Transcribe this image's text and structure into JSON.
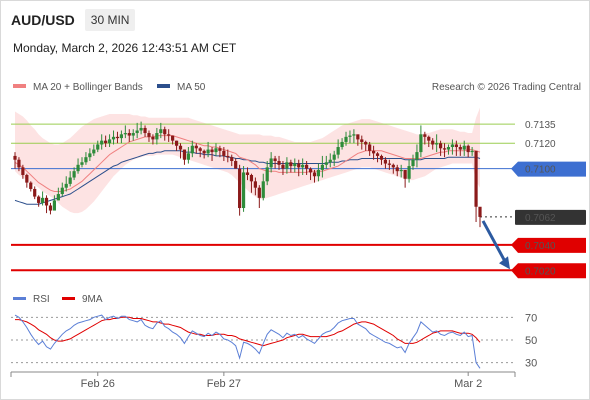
{
  "header": {
    "symbol": "AUD/USD",
    "timeframe": "30 MIN",
    "datetime": "Monday, March 2, 2026 12:43:51 AM CET"
  },
  "chart_data": {
    "type": "candlestick",
    "price_panel": {
      "legend": [
        {
          "label": "MA 20 + Bollinger Bands",
          "color": "#f08080"
        },
        {
          "label": "MA 50",
          "color": "#2c4f8c"
        }
      ],
      "credit": "Research © 2026 Trading Central",
      "ylim": [
        0.701,
        0.7154
      ],
      "levels": [
        {
          "value": 0.7135,
          "label": "0.7135",
          "role": "target",
          "color": "#9acd50"
        },
        {
          "value": 0.712,
          "label": "0.7120",
          "role": "target",
          "color": "#9acd50"
        },
        {
          "value": 0.71,
          "label": "0.7100",
          "role": "pivot",
          "color": "#3d6fd1"
        },
        {
          "value": 0.7062,
          "label": "0.7062",
          "role": "last",
          "color": "#333333"
        },
        {
          "value": 0.704,
          "label": "0.7040",
          "role": "support",
          "color": "#e00000"
        },
        {
          "value": 0.702,
          "label": "0.7020",
          "role": "support",
          "color": "#e00000"
        }
      ],
      "forecast_arrow": {
        "from": 0.7062,
        "to": 0.702,
        "color": "#2c5aa0"
      },
      "closes": [
        0.7107,
        0.7101,
        0.7095,
        0.7089,
        0.7084,
        0.7078,
        0.7073,
        0.7077,
        0.7071,
        0.7067,
        0.7075,
        0.708,
        0.7085,
        0.7088,
        0.7093,
        0.7098,
        0.7103,
        0.7105,
        0.7109,
        0.7112,
        0.7115,
        0.7119,
        0.7122,
        0.712,
        0.7123,
        0.7125,
        0.7124,
        0.7127,
        0.7128,
        0.7126,
        0.7128,
        0.713,
        0.7132,
        0.7128,
        0.7125,
        0.7123,
        0.7128,
        0.7131,
        0.7127,
        0.7126,
        0.7122,
        0.7118,
        0.7115,
        0.7107,
        0.7112,
        0.7118,
        0.7116,
        0.7114,
        0.7112,
        0.7115,
        0.7113,
        0.7116,
        0.7114,
        0.711,
        0.7109,
        0.7106,
        0.71,
        0.7069,
        0.7097,
        0.7095,
        0.709,
        0.7085,
        0.7077,
        0.709,
        0.7101,
        0.7108,
        0.7106,
        0.7103,
        0.71,
        0.7105,
        0.7102,
        0.7104,
        0.7101,
        0.7103,
        0.71,
        0.7097,
        0.7094,
        0.7099,
        0.7103,
        0.7105,
        0.7107,
        0.7111,
        0.7117,
        0.7121,
        0.7125,
        0.7126,
        0.7127,
        0.7123,
        0.7121,
        0.7119,
        0.7114,
        0.7112,
        0.711,
        0.7107,
        0.7104,
        0.7103,
        0.7101,
        0.7098,
        0.7099,
        0.7092,
        0.7102,
        0.7107,
        0.7113,
        0.7127,
        0.7125,
        0.7122,
        0.7119,
        0.712,
        0.7116,
        0.7115,
        0.7117,
        0.7119,
        0.7117,
        0.7115,
        0.7118,
        0.7113,
        0.7114,
        0.707,
        0.7062
      ],
      "highs": [
        0.7113,
        0.7109,
        0.7103,
        0.7096,
        0.709,
        0.7086,
        0.7079,
        0.7082,
        0.7079,
        0.7073,
        0.7079,
        0.7085,
        0.7089,
        0.7094,
        0.7098,
        0.7101,
        0.7108,
        0.7109,
        0.7113,
        0.7116,
        0.7119,
        0.7122,
        0.7127,
        0.7126,
        0.7127,
        0.713,
        0.7129,
        0.713,
        0.7134,
        0.7131,
        0.7131,
        0.7136,
        0.7137,
        0.7134,
        0.713,
        0.7127,
        0.7132,
        0.7136,
        0.7133,
        0.7131,
        0.7126,
        0.7122,
        0.712,
        0.7115,
        0.7117,
        0.7122,
        0.712,
        0.7117,
        0.7115,
        0.7121,
        0.7117,
        0.712,
        0.7118,
        0.7117,
        0.7115,
        0.7111,
        0.7108,
        0.7103,
        0.7102,
        0.7101,
        0.7096,
        0.7093,
        0.7087,
        0.7096,
        0.7106,
        0.7113,
        0.711,
        0.711,
        0.7106,
        0.7109,
        0.7107,
        0.7108,
        0.7107,
        0.7108,
        0.7106,
        0.7101,
        0.7099,
        0.7104,
        0.711,
        0.711,
        0.7112,
        0.7114,
        0.7123,
        0.7124,
        0.7129,
        0.713,
        0.7131,
        0.7126,
        0.7126,
        0.7122,
        0.7121,
        0.7118,
        0.7113,
        0.7111,
        0.7109,
        0.7107,
        0.7104,
        0.7103,
        0.7103,
        0.7098,
        0.7107,
        0.7111,
        0.7119,
        0.7134,
        0.7129,
        0.7126,
        0.7124,
        0.7127,
        0.7122,
        0.712,
        0.7119,
        0.7123,
        0.7122,
        0.7119,
        0.7122,
        0.7119,
        0.7117,
        0.7085,
        0.7067
      ],
      "lows": [
        0.71,
        0.7098,
        0.7092,
        0.7085,
        0.7082,
        0.7076,
        0.707,
        0.7071,
        0.7065,
        0.7064,
        0.7068,
        0.7075,
        0.7078,
        0.7082,
        0.7086,
        0.7091,
        0.7096,
        0.7101,
        0.7103,
        0.7106,
        0.711,
        0.7113,
        0.7115,
        0.7117,
        0.7117,
        0.7119,
        0.712,
        0.712,
        0.7124,
        0.7121,
        0.7122,
        0.7124,
        0.7127,
        0.7125,
        0.7121,
        0.7119,
        0.7119,
        0.7124,
        0.7122,
        0.7121,
        0.7119,
        0.7114,
        0.7108,
        0.7103,
        0.7104,
        0.7109,
        0.7112,
        0.7109,
        0.7108,
        0.7109,
        0.7106,
        0.711,
        0.7109,
        0.7106,
        0.7105,
        0.7102,
        0.71,
        0.7063,
        0.7066,
        0.7091,
        0.7081,
        0.7079,
        0.7069,
        0.7075,
        0.7087,
        0.7097,
        0.71,
        0.7099,
        0.7095,
        0.7096,
        0.7097,
        0.7097,
        0.7094,
        0.7095,
        0.7095,
        0.7091,
        0.7089,
        0.709,
        0.7093,
        0.71,
        0.7101,
        0.7102,
        0.7108,
        0.7115,
        0.7118,
        0.712,
        0.712,
        0.7118,
        0.7115,
        0.7114,
        0.711,
        0.7107,
        0.7105,
        0.7103,
        0.71,
        0.7099,
        0.7096,
        0.7094,
        0.7093,
        0.7085,
        0.7089,
        0.7099,
        0.7101,
        0.7109,
        0.7119,
        0.7117,
        0.7115,
        0.7113,
        0.711,
        0.7109,
        0.7111,
        0.7111,
        0.711,
        0.711,
        0.711,
        0.7109,
        0.711,
        0.7058,
        0.7054
      ],
      "ma20": [
        0.7105,
        0.7103,
        0.7101,
        0.7098,
        0.7095,
        0.7092,
        0.7089,
        0.7087,
        0.7085,
        0.7083,
        0.7082,
        0.7082,
        0.7082,
        0.7083,
        0.7084,
        0.7086,
        0.7088,
        0.709,
        0.7093,
        0.7096,
        0.7099,
        0.7102,
        0.7105,
        0.7108,
        0.7111,
        0.7113,
        0.7115,
        0.7117,
        0.7119,
        0.7121,
        0.7122,
        0.7123,
        0.7124,
        0.7125,
        0.7125,
        0.7125,
        0.7126,
        0.7126,
        0.7126,
        0.7126,
        0.7126,
        0.7125,
        0.7124,
        0.7123,
        0.7122,
        0.7121,
        0.712,
        0.7119,
        0.7118,
        0.7118,
        0.7117,
        0.7117,
        0.7116,
        0.7115,
        0.7114,
        0.7113,
        0.7112,
        0.7109,
        0.7108,
        0.7107,
        0.7105,
        0.7103,
        0.71,
        0.7099,
        0.7098,
        0.7098,
        0.7098,
        0.7097,
        0.7097,
        0.7097,
        0.7097,
        0.7097,
        0.7097,
        0.7097,
        0.7097,
        0.7098,
        0.7098,
        0.7098,
        0.7098,
        0.7099,
        0.71,
        0.7101,
        0.7102,
        0.7104,
        0.7106,
        0.7108,
        0.711,
        0.7112,
        0.7113,
        0.7114,
        0.7114,
        0.7114,
        0.7114,
        0.7114,
        0.7113,
        0.7112,
        0.7111,
        0.711,
        0.7109,
        0.7108,
        0.7108,
        0.7108,
        0.7108,
        0.7108,
        0.7109,
        0.711,
        0.7111,
        0.7112,
        0.7113,
        0.7113,
        0.7114,
        0.7114,
        0.7114,
        0.7114,
        0.7114,
        0.7115,
        0.7115,
        0.7114,
        0.7113
      ],
      "ma50": [
        0.7075,
        0.7074,
        0.7073,
        0.7072,
        0.7072,
        0.7072,
        0.7072,
        0.7073,
        0.7074,
        0.7075,
        0.7076,
        0.7077,
        0.7078,
        0.7079,
        0.708,
        0.7082,
        0.7084,
        0.7086,
        0.7088,
        0.709,
        0.7092,
        0.7094,
        0.7096,
        0.7098,
        0.71,
        0.7102,
        0.7103,
        0.7105,
        0.7106,
        0.7107,
        0.7108,
        0.7109,
        0.711,
        0.7111,
        0.7112,
        0.7112,
        0.7113,
        0.7113,
        0.7114,
        0.7114,
        0.7114,
        0.7114,
        0.7114,
        0.7113,
        0.7113,
        0.7113,
        0.7112,
        0.7112,
        0.7111,
        0.7111,
        0.7111,
        0.711,
        0.711,
        0.711,
        0.7109,
        0.7109,
        0.7108,
        0.7108,
        0.7107,
        0.7107,
        0.7106,
        0.7106,
        0.7105,
        0.7105,
        0.7104,
        0.7104,
        0.7104,
        0.7104,
        0.7104,
        0.7104,
        0.7104,
        0.7104,
        0.7104,
        0.7104,
        0.7104,
        0.7104,
        0.7104,
        0.7104,
        0.7104,
        0.7104,
        0.7105,
        0.7105,
        0.7105,
        0.7106,
        0.7106,
        0.7107,
        0.7107,
        0.7107,
        0.7108,
        0.7108,
        0.7108,
        0.7108,
        0.7108,
        0.7108,
        0.7108,
        0.7108,
        0.7108,
        0.7108,
        0.7108,
        0.7107,
        0.7107,
        0.7107,
        0.7107,
        0.7107,
        0.7108,
        0.7108,
        0.7108,
        0.7108,
        0.7108,
        0.7108,
        0.7109,
        0.7109,
        0.7109,
        0.7109,
        0.7109,
        0.7109,
        0.7109,
        0.7109,
        0.7108
      ],
      "bb_upper": [
        0.7145,
        0.7143,
        0.7141,
        0.7138,
        0.7134,
        0.7131,
        0.7127,
        0.7124,
        0.7122,
        0.712,
        0.7119,
        0.7119,
        0.712,
        0.7122,
        0.7124,
        0.7127,
        0.713,
        0.7133,
        0.7135,
        0.7137,
        0.7139,
        0.714,
        0.7141,
        0.7142,
        0.7143,
        0.7143,
        0.7143,
        0.7143,
        0.7143,
        0.7143,
        0.7142,
        0.7142,
        0.7141,
        0.7141,
        0.714,
        0.714,
        0.714,
        0.714,
        0.714,
        0.714,
        0.714,
        0.714,
        0.714,
        0.714,
        0.714,
        0.7139,
        0.7138,
        0.7137,
        0.7136,
        0.7135,
        0.7134,
        0.7133,
        0.7132,
        0.7131,
        0.713,
        0.7129,
        0.7128,
        0.7127,
        0.7127,
        0.7127,
        0.7127,
        0.7127,
        0.7127,
        0.7126,
        0.7126,
        0.7126,
        0.7125,
        0.7125,
        0.7124,
        0.7123,
        0.7122,
        0.7121,
        0.7121,
        0.7121,
        0.7121,
        0.7121,
        0.7122,
        0.7123,
        0.7124,
        0.7126,
        0.7128,
        0.713,
        0.7132,
        0.7134,
        0.7135,
        0.7136,
        0.7137,
        0.7138,
        0.7139,
        0.7139,
        0.7139,
        0.7138,
        0.7137,
        0.7136,
        0.7135,
        0.7134,
        0.7133,
        0.7132,
        0.7131,
        0.713,
        0.7129,
        0.7128,
        0.7127,
        0.7127,
        0.7128,
        0.7128,
        0.7129,
        0.713,
        0.7131,
        0.7131,
        0.7131,
        0.7131,
        0.713,
        0.7129,
        0.7129,
        0.7128,
        0.7128,
        0.714,
        0.7148
      ],
      "bb_lower": [
        0.7098,
        0.7095,
        0.7093,
        0.7091,
        0.7089,
        0.7087,
        0.7085,
        0.7082,
        0.708,
        0.7078,
        0.7076,
        0.7073,
        0.707,
        0.7068,
        0.7066,
        0.7065,
        0.7065,
        0.7066,
        0.7068,
        0.7071,
        0.7074,
        0.7078,
        0.7082,
        0.7086,
        0.709,
        0.7094,
        0.7097,
        0.71,
        0.7103,
        0.7105,
        0.7107,
        0.7108,
        0.7109,
        0.711,
        0.711,
        0.711,
        0.7111,
        0.7111,
        0.7111,
        0.7111,
        0.7111,
        0.711,
        0.7109,
        0.7108,
        0.7107,
        0.7106,
        0.7105,
        0.7104,
        0.7103,
        0.7102,
        0.7101,
        0.71,
        0.7099,
        0.7098,
        0.7097,
        0.7095,
        0.7092,
        0.7089,
        0.7086,
        0.7083,
        0.708,
        0.7078,
        0.7076,
        0.7076,
        0.7077,
        0.7078,
        0.7079,
        0.708,
        0.7081,
        0.7082,
        0.7083,
        0.7084,
        0.7085,
        0.7086,
        0.7087,
        0.7088,
        0.7089,
        0.709,
        0.7091,
        0.7092,
        0.7093,
        0.7094,
        0.7095,
        0.7096,
        0.7097,
        0.7098,
        0.7099,
        0.71,
        0.7101,
        0.7101,
        0.7101,
        0.71,
        0.7099,
        0.7098,
        0.7097,
        0.7096,
        0.7095,
        0.7094,
        0.7093,
        0.7092,
        0.7091,
        0.7091,
        0.7092,
        0.7093,
        0.7094,
        0.7096,
        0.7098,
        0.71,
        0.7101,
        0.7102,
        0.7103,
        0.7104,
        0.7104,
        0.7104,
        0.7104,
        0.7104,
        0.7104,
        0.709,
        0.7085
      ]
    },
    "rsi_panel": {
      "legend": [
        {
          "label": "RSI",
          "color": "#5b7fd6"
        },
        {
          "label": "9MA",
          "color": "#e00000"
        }
      ],
      "ylim": [
        20,
        80
      ],
      "ticks": [
        70,
        50,
        30
      ],
      "rsi": [
        72,
        70,
        66,
        61,
        55,
        50,
        46,
        49,
        44,
        42,
        47,
        51,
        55,
        58,
        60,
        63,
        65,
        66,
        67,
        68,
        70,
        71,
        72,
        68,
        70,
        71,
        69,
        71,
        71,
        68,
        67,
        66,
        68,
        63,
        61,
        60,
        65,
        67,
        62,
        60,
        57,
        55,
        52,
        47,
        53,
        58,
        56,
        54,
        53,
        56,
        54,
        57,
        55,
        51,
        50,
        48,
        45,
        34,
        48,
        47,
        45,
        42,
        38,
        47,
        55,
        59,
        57,
        55,
        52,
        56,
        54,
        55,
        52,
        54,
        51,
        49,
        47,
        51,
        55,
        57,
        58,
        61,
        65,
        67,
        68,
        69,
        69,
        64,
        62,
        60,
        56,
        54,
        52,
        50,
        48,
        47,
        45,
        43,
        44,
        39,
        47,
        52,
        57,
        66,
        63,
        60,
        57,
        58,
        55,
        54,
        56,
        57,
        55,
        54,
        57,
        53,
        54,
        30,
        25
      ],
      "ma9": [
        68,
        68,
        67,
        66,
        64,
        62,
        59,
        57,
        55,
        52,
        50,
        49,
        49,
        50,
        51,
        53,
        55,
        57,
        59,
        61,
        63,
        65,
        67,
        68,
        68,
        69,
        69,
        70,
        70,
        70,
        69,
        69,
        69,
        68,
        67,
        66,
        66,
        65,
        64,
        64,
        63,
        62,
        61,
        59,
        57,
        56,
        55,
        55,
        54,
        54,
        54,
        55,
        55,
        55,
        54,
        54,
        53,
        51,
        50,
        49,
        48,
        47,
        46,
        45,
        46,
        47,
        48,
        49,
        50,
        52,
        53,
        54,
        55,
        55,
        54,
        53,
        53,
        53,
        53,
        53,
        54,
        55,
        57,
        58,
        60,
        62,
        64,
        65,
        66,
        66,
        65,
        64,
        62,
        60,
        58,
        56,
        54,
        51,
        49,
        47,
        47,
        47,
        48,
        50,
        52,
        54,
        56,
        57,
        58,
        58,
        58,
        58,
        57,
        56,
        56,
        56,
        55,
        52,
        48
      ]
    },
    "x_axis": {
      "labels": [
        {
          "text": "Feb 26",
          "index": 21
        },
        {
          "text": "Feb 27",
          "index": 53
        },
        {
          "text": "Mar 2",
          "index": 115
        }
      ]
    },
    "colors": {
      "up": "#2e8b3a",
      "down": "#8b1a1a",
      "bb_fill": "#fde0e0",
      "ma20": "#f08080",
      "ma50": "#2c4f8c"
    }
  }
}
